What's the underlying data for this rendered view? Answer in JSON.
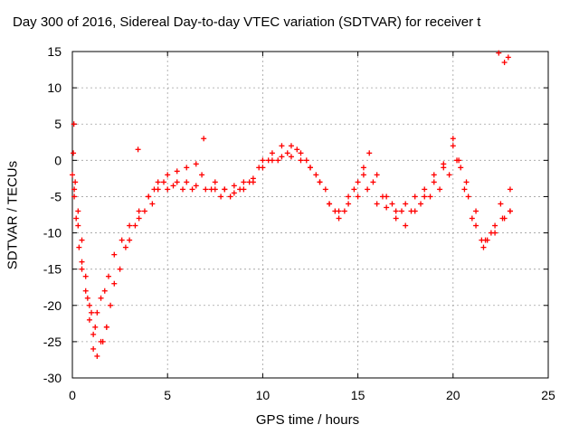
{
  "chart_data": {
    "type": "scatter",
    "title": "Day 300 of 2016, Sidereal Day-to-day VTEC variation (SDTVAR) for receiver t",
    "xlabel": "GPS time / hours",
    "ylabel": "SDTVAR / TECUs",
    "xlim": [
      0,
      25
    ],
    "ylim": [
      -30,
      15
    ],
    "xticks": [
      "0",
      "5",
      "10",
      "15",
      "20",
      "25"
    ],
    "yticks": [
      "-30",
      "-25",
      "-20",
      "-15",
      "-10",
      "-5",
      "0",
      "5",
      "10",
      "15"
    ],
    "grid": true,
    "marker": "+",
    "color": "#ff0000",
    "series": [
      {
        "x": [
          0,
          0.1,
          0.2,
          0.35,
          0.5,
          0.7,
          0.9,
          1.1,
          1.3,
          1.5,
          1.7,
          1.9,
          2.2,
          2.6,
          3.0,
          3.5,
          4.0,
          4.5,
          5.0,
          5.5,
          6.0,
          6.5,
          7.0,
          7.5,
          8.0,
          8.5,
          9.0,
          9.5,
          10.0,
          10.5,
          11.0,
          11.5,
          12.0,
          12.5,
          13.0,
          13.5,
          14.0,
          14.5,
          15.0,
          15.5,
          16.0,
          16.5,
          17.0,
          17.5,
          18.0,
          18.5,
          19.0,
          19.5,
          20.0,
          20.3,
          20.6,
          21.0,
          21.5,
          21.8,
          22.2,
          22.6,
          23.0
        ],
        "y": [
          -2,
          -5,
          -8,
          -12,
          -15,
          -18,
          -22,
          -24,
          -21,
          -19,
          -18,
          -16,
          -13,
          -11,
          -9,
          -7,
          -5,
          -4,
          -4,
          -3,
          -3,
          -3.5,
          -4,
          -4,
          -4,
          -3.5,
          -3,
          -2.5,
          -1,
          0,
          0.5,
          0.5,
          0,
          -1,
          -3,
          -6,
          -7,
          -5,
          -3,
          -4,
          -6,
          -6.5,
          -7,
          -6,
          -5,
          -4,
          -2,
          -0.5,
          2,
          0,
          -4,
          -8,
          -11,
          -11,
          -9,
          -8,
          -7
        ]
      },
      {
        "x": [
          0.05,
          0.15,
          0.3,
          0.5,
          0.7,
          0.9,
          1.1,
          1.3,
          1.6,
          2.0,
          2.5,
          3.0,
          3.5,
          4.0,
          4.5,
          5.0,
          5.5,
          6.0,
          6.5,
          6.9,
          7.5,
          8.0,
          8.5,
          9.0,
          9.5,
          10.0,
          10.5,
          11.0,
          11.5,
          12.0,
          12.5,
          13.0,
          13.5,
          14.0,
          14.5,
          15.0,
          15.3,
          15.6,
          16.0,
          16.5,
          17.0,
          17.5,
          18.0,
          18.5,
          19.0,
          19.5,
          20.0,
          20.4,
          20.8,
          21.2,
          21.6,
          22.0,
          22.5,
          23.0
        ],
        "y": [
          1,
          -3,
          -7,
          -11,
          -16,
          -20,
          -26,
          -27,
          -25,
          -20,
          -15,
          -11,
          -8,
          -5,
          -3,
          -2,
          -1.5,
          -1,
          -0.5,
          3,
          -3,
          -4,
          -4.5,
          -4,
          -3,
          0,
          1,
          2,
          2,
          1,
          -1,
          -3,
          -6,
          -8,
          -6,
          -5,
          -1,
          1,
          -2,
          -5,
          -8,
          -9,
          -7,
          -5,
          -3,
          -1,
          3,
          -1,
          -5,
          -9,
          -12,
          -10,
          -6,
          -4
        ]
      },
      {
        "x": [
          0.1,
          0.3,
          0.5,
          0.8,
          1.0,
          1.2,
          1.5,
          1.8,
          2.2,
          2.8,
          3.3,
          3.8,
          4.3,
          4.8,
          5.3,
          5.8,
          6.3,
          6.8,
          7.3,
          7.8,
          8.3,
          8.8,
          9.3,
          9.8,
          10.3,
          10.8,
          11.3,
          11.8,
          12.3,
          12.8,
          13.3,
          13.8,
          14.3,
          14.8,
          15.3,
          15.8,
          16.3,
          16.8,
          17.3,
          17.8,
          18.3,
          18.8,
          19.3,
          19.8,
          20.2,
          20.7,
          21.2,
          21.7,
          22.2,
          22.7,
          23.0
        ],
        "y": [
          -4,
          -9,
          -14,
          -19,
          -21,
          -23,
          -25,
          -23,
          -17,
          -12,
          -9,
          -7,
          -4,
          -3,
          -3.5,
          -4,
          -4,
          -2,
          -4,
          -5,
          -5,
          -4,
          -3,
          -1,
          0,
          0,
          1,
          1.5,
          0,
          -2,
          -4,
          -7,
          -7,
          -4,
          -2,
          -3,
          -5,
          -6,
          -7,
          -7,
          -6,
          -5,
          -4,
          -2,
          0,
          -3,
          -7,
          -11,
          -10,
          -8,
          -7
        ]
      },
      {
        "x": [
          0.08,
          1.8,
          3.45,
          4.2,
          22.4,
          22.7,
          22.9
        ],
        "y": [
          5,
          -23,
          1.5,
          -6,
          14.8,
          13.5,
          14.2
        ]
      }
    ]
  }
}
